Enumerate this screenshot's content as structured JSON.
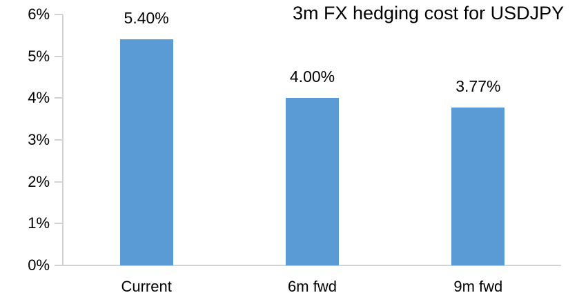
{
  "chart_data": {
    "type": "bar",
    "title": "3m FX hedging cost for USDJPY",
    "categories": [
      "Current",
      "6m fwd",
      "9m fwd"
    ],
    "values": [
      5.4,
      4.0,
      3.77
    ],
    "data_labels": [
      "5.40%",
      "4.00%",
      "3.77%"
    ],
    "y_tick_labels": [
      "0%",
      "1%",
      "2%",
      "3%",
      "4%",
      "5%",
      "6%"
    ],
    "ylim": [
      0,
      6
    ],
    "xlabel": "",
    "ylabel": "",
    "grid": false,
    "legend": "none",
    "colors": {
      "bar": "#5B9BD5",
      "axis": "#D2D2D2",
      "text": "#000000",
      "background": "#FFFFFF"
    }
  }
}
